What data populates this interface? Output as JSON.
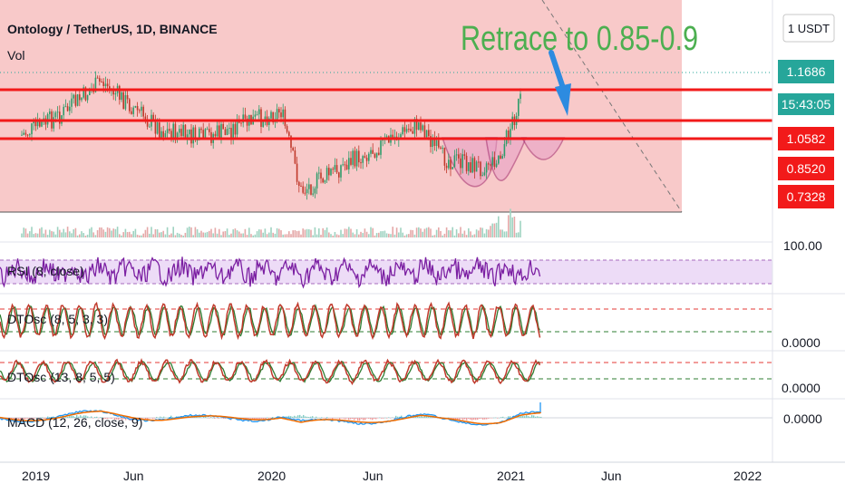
{
  "header": {
    "symbol_line": "Ontology / TetherUS, 1D, BINANCE",
    "volume_label": "Vol",
    "currency_button": "1 USDT"
  },
  "annotation": {
    "text": "Retrace to 0.85-0.9",
    "color": "#4caf50",
    "arrow_color": "#2d8be0"
  },
  "price_badges": [
    {
      "label": "1.1686",
      "color": "#26a69a"
    },
    {
      "label": "15:43:05",
      "color": "#26a69a"
    },
    {
      "label": "1.0582",
      "color": "#f21a1a"
    },
    {
      "label": "0.8520",
      "color": "#f21a1a"
    },
    {
      "label": "0.7328",
      "color": "#f21a1a"
    }
  ],
  "indicators": [
    {
      "id": "rsi",
      "label": "RSI (8, close)",
      "scale_label": "100.00"
    },
    {
      "id": "dtosc1",
      "label": "DTOsc (8, 5, 3, 3)",
      "scale_label": "0.0000"
    },
    {
      "id": "dtosc2",
      "label": "DTOsc (13, 8, 5, 5)",
      "scale_label": "0.0000"
    },
    {
      "id": "macd",
      "label": "MACD (12, 26, close, 9)",
      "scale_label": "0.0000"
    }
  ],
  "time_axis": [
    "2019",
    "Jun",
    "2020",
    "Jun",
    "2021",
    "Jun",
    "2022"
  ],
  "colors": {
    "zone_fill": "#f8c9c9",
    "support_line": "#f21a1a",
    "cup_fill": "#e79fc6",
    "rsi_line": "#7b1fa2",
    "rsi_band": "#eddcf7",
    "dto_line": "#c0392b",
    "dto_signal": "#2e7d32",
    "macd_line": "#2196f3",
    "macd_signal": "#ef6c00"
  },
  "chart_data": {
    "type": "line",
    "title": "Ontology / TetherUS, 1D, BINANCE",
    "x_ticks": [
      "2019",
      "Jun",
      "2020",
      "Jun",
      "2021",
      "Jun",
      "2022"
    ],
    "horizontal_levels": [
      1.25,
      1.0582,
      0.852
    ],
    "shown_price_levels": [
      1.1686,
      1.0582,
      0.852,
      0.7328
    ],
    "approx_close_series": {
      "x": [
        "2019-01",
        "2019-03",
        "2019-05",
        "2019-06",
        "2019-08",
        "2019-10",
        "2019-12",
        "2020-02",
        "2020-03",
        "2020-05",
        "2020-07",
        "2020-09",
        "2020-10",
        "2020-12",
        "2021-01",
        "2021-02"
      ],
      "y": [
        0.88,
        1.05,
        1.32,
        1.18,
        0.92,
        0.85,
        0.96,
        1.08,
        0.42,
        0.62,
        0.8,
        0.98,
        0.7,
        0.62,
        0.72,
        1.1686
      ]
    }
  }
}
